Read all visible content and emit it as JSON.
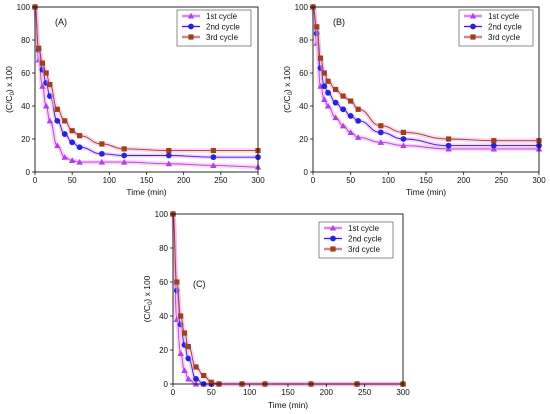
{
  "colors": {
    "cycle1": "#b140e6",
    "cycle2": "#2323e0",
    "cycle3": "#a0401a",
    "band": "#f6b3ee"
  },
  "chart_data": [
    {
      "type": "line",
      "panel_label": "(A)",
      "xlabel": "Time (min)",
      "ylabel_main": "(C/C",
      "ylabel_sub": "0",
      "ylabel_tail": ") x 100",
      "xlim": [
        0,
        300
      ],
      "ylim": [
        0,
        100
      ],
      "xticks": [
        0,
        50,
        100,
        150,
        200,
        250,
        300
      ],
      "yticks": [
        0,
        20,
        40,
        60,
        80,
        100
      ],
      "legend_position": "top-right",
      "x": [
        0,
        5,
        10,
        15,
        20,
        30,
        40,
        50,
        60,
        90,
        120,
        180,
        240,
        300
      ],
      "series": [
        {
          "name": "1st cycle",
          "marker": "triangle",
          "values": [
            100,
            68,
            52,
            40,
            31,
            16,
            9,
            7,
            6,
            6,
            6,
            5,
            4,
            3
          ]
        },
        {
          "name": "2nd cycle",
          "marker": "circle",
          "values": [
            100,
            74,
            62,
            54,
            46,
            31,
            23,
            18,
            15,
            11,
            10,
            10,
            9,
            9
          ]
        },
        {
          "name": "3rd cycle",
          "marker": "square",
          "values": [
            100,
            75,
            66,
            60,
            53,
            38,
            31,
            25,
            22,
            17,
            14,
            13,
            13,
            13
          ]
        }
      ]
    },
    {
      "type": "line",
      "panel_label": "(B)",
      "xlabel": "Time (min)",
      "ylabel_main": "(C/C",
      "ylabel_sub": "0",
      "ylabel_tail": ") x 100",
      "xlim": [
        0,
        300
      ],
      "ylim": [
        0,
        100
      ],
      "xticks": [
        0,
        50,
        100,
        150,
        200,
        250,
        300
      ],
      "yticks": [
        0,
        20,
        40,
        60,
        80,
        100
      ],
      "legend_position": "top-right",
      "x": [
        0,
        5,
        10,
        15,
        20,
        30,
        40,
        50,
        60,
        90,
        120,
        180,
        240,
        300
      ],
      "series": [
        {
          "name": "1st cycle",
          "marker": "triangle",
          "values": [
            100,
            78,
            52,
            44,
            40,
            33,
            28,
            24,
            21,
            18,
            16,
            14,
            14,
            14
          ]
        },
        {
          "name": "2nd cycle",
          "marker": "circle",
          "values": [
            100,
            84,
            63,
            52,
            48,
            42,
            38,
            34,
            31,
            24,
            20,
            16,
            16,
            16
          ]
        },
        {
          "name": "3rd cycle",
          "marker": "square",
          "values": [
            100,
            88,
            69,
            60,
            55,
            50,
            46,
            43,
            38,
            28,
            24,
            20,
            19,
            19
          ]
        }
      ]
    },
    {
      "type": "line",
      "panel_label": "(C)",
      "xlabel": "Time (min)",
      "ylabel_main": "(C/C",
      "ylabel_sub": "0",
      "ylabel_tail": ") x 100",
      "xlim": [
        0,
        300
      ],
      "ylim": [
        0,
        100
      ],
      "xticks": [
        0,
        50,
        100,
        150,
        200,
        250,
        300
      ],
      "yticks": [
        0,
        20,
        40,
        60,
        80,
        100
      ],
      "legend_position": "top-right",
      "x": [
        0,
        5,
        10,
        15,
        20,
        30,
        40,
        50,
        60,
        90,
        120,
        180,
        240,
        300
      ],
      "series": [
        {
          "name": "1st cycle",
          "marker": "triangle",
          "values": [
            100,
            38,
            18,
            8,
            3,
            0,
            0,
            0,
            0,
            0,
            0,
            0,
            0,
            0
          ]
        },
        {
          "name": "2nd cycle",
          "marker": "circle",
          "values": [
            100,
            55,
            35,
            23,
            15,
            3,
            0,
            0,
            0,
            0,
            0,
            0,
            0,
            0
          ]
        },
        {
          "name": "3rd cycle",
          "marker": "square",
          "values": [
            100,
            60,
            40,
            30,
            22,
            10,
            5,
            1,
            0,
            0,
            0,
            0,
            0,
            0
          ]
        }
      ]
    }
  ]
}
